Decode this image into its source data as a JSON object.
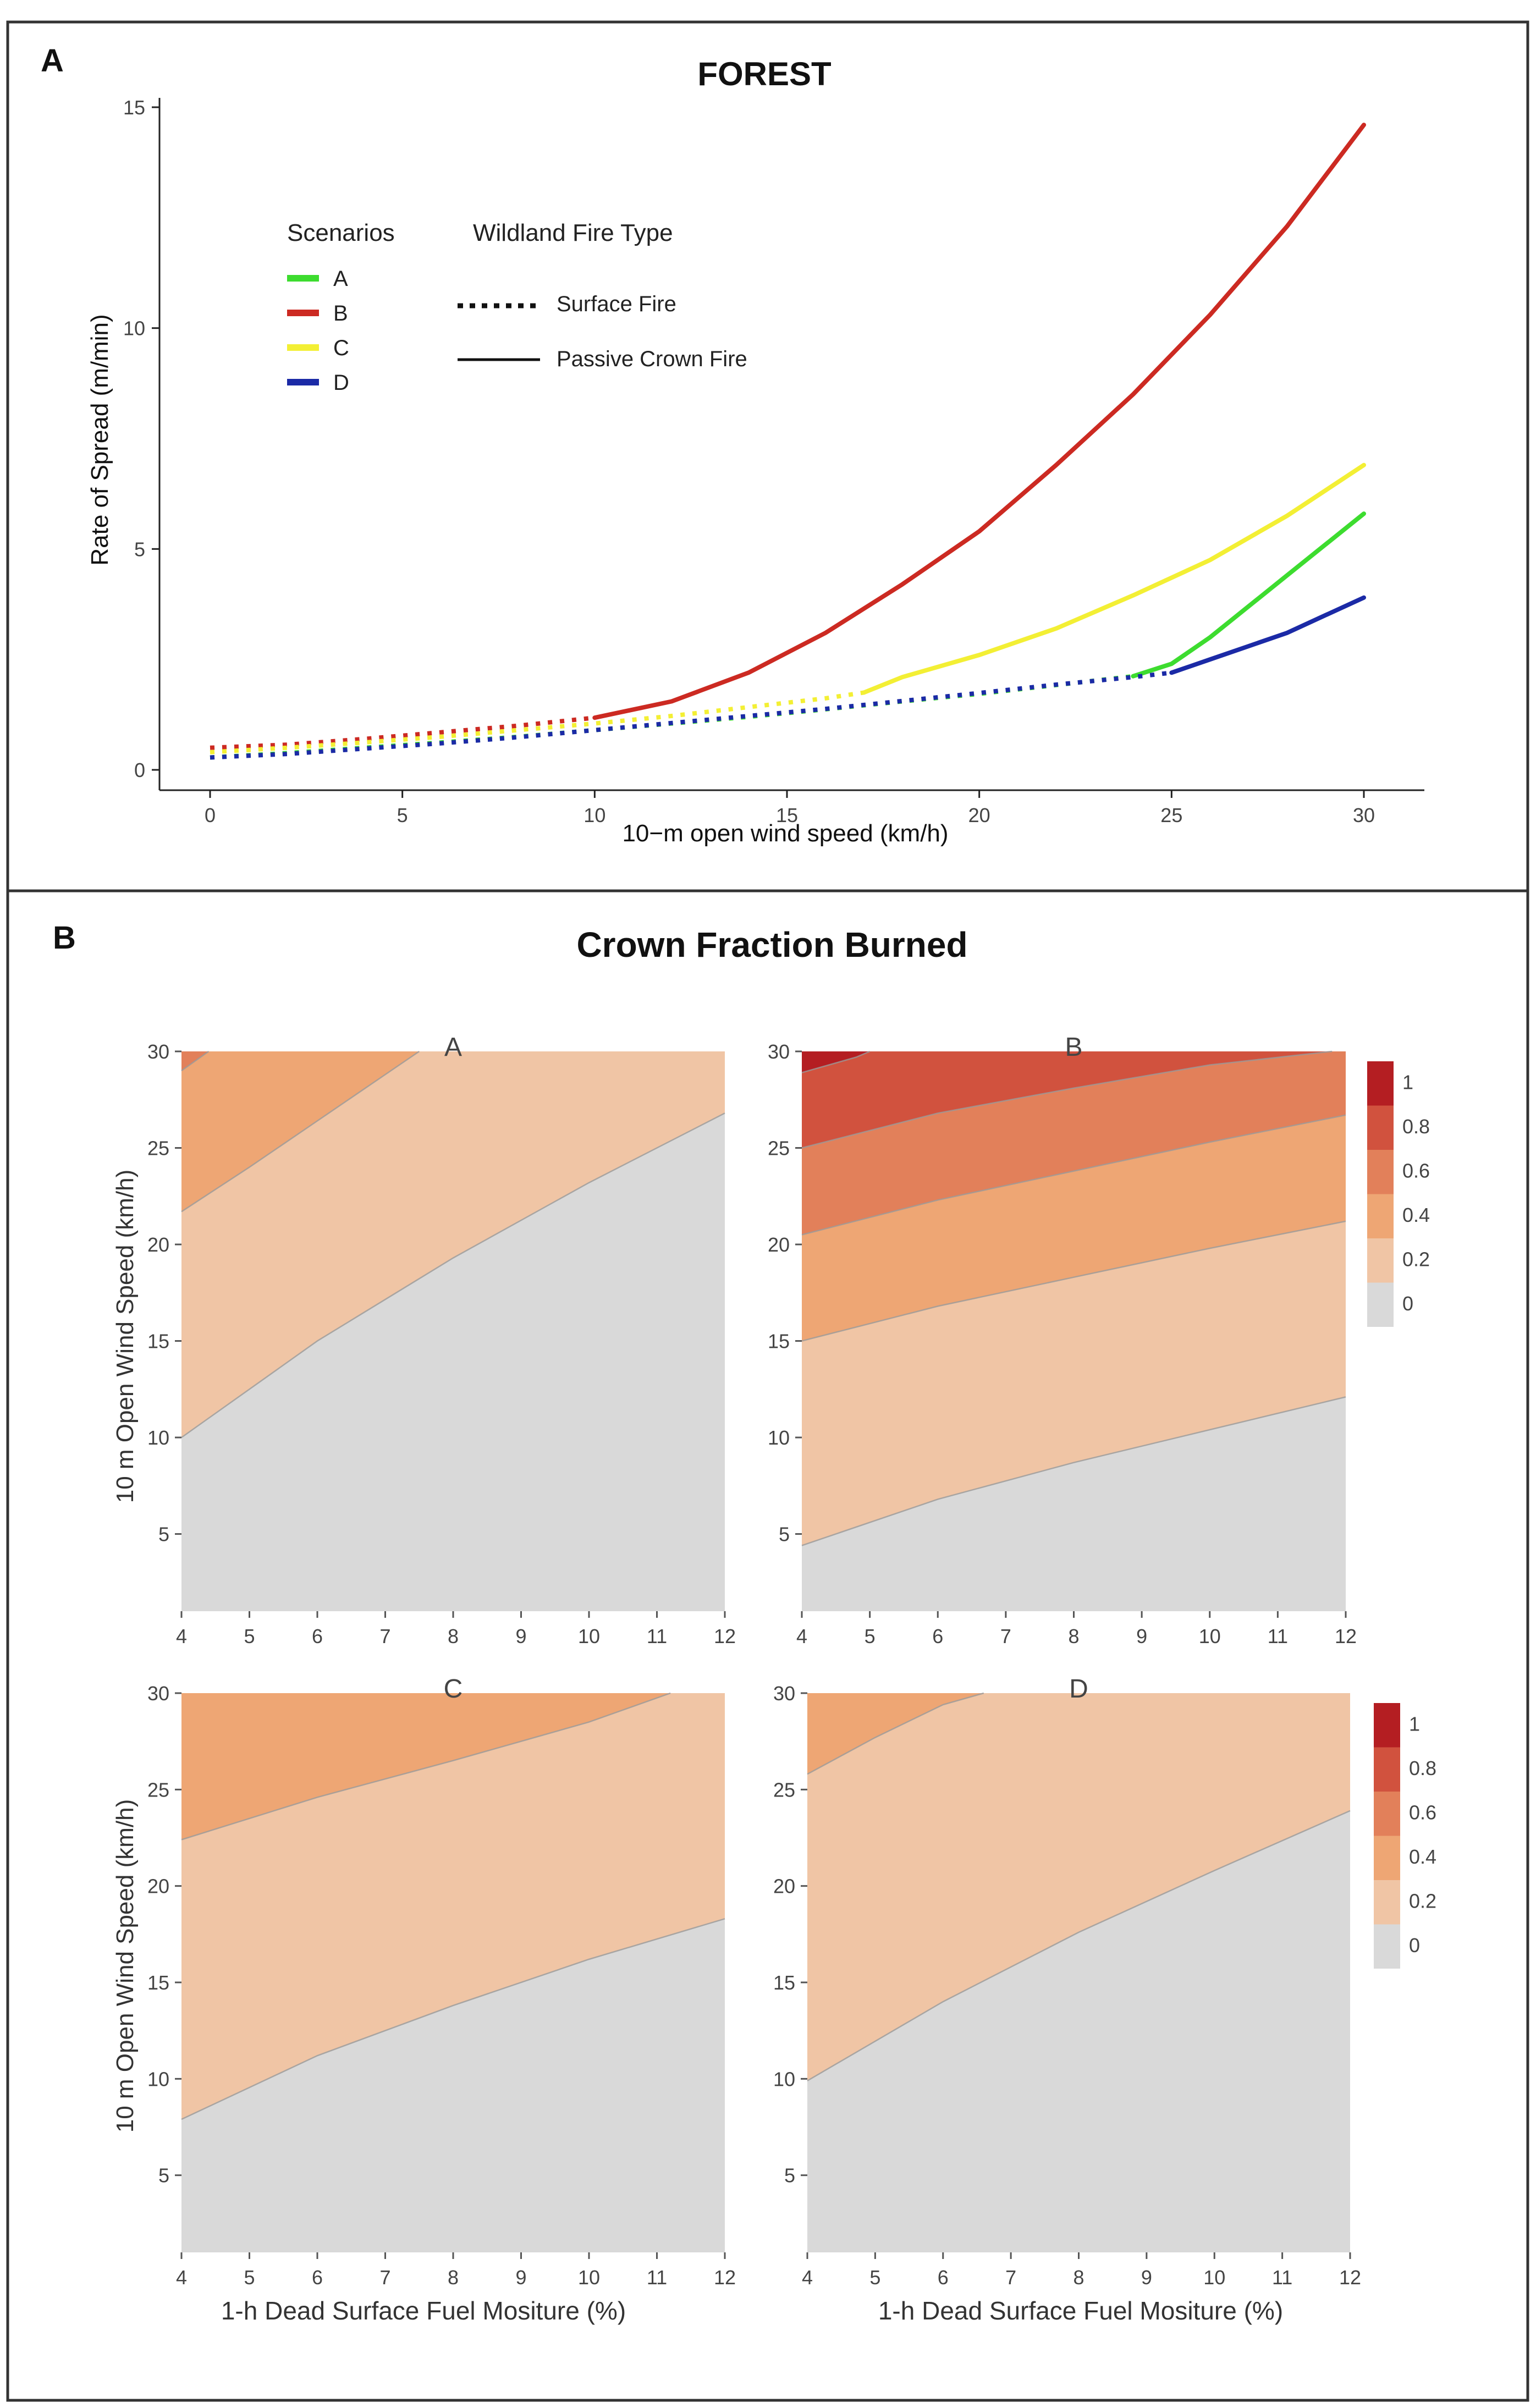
{
  "panel_a": {
    "panel_letter": "A",
    "title": "FOREST",
    "xlabel": "10−m open wind speed (km/h)",
    "ylabel": "Rate of Spread (m/min)",
    "legend_scenarios_title": "Scenarios",
    "legend_firetype_title": "Wildland Fire Type",
    "legend_firetype_items": [
      {
        "label": "Surface Fire",
        "style": "dotted"
      },
      {
        "label": "Passive Crown Fire",
        "style": "solid"
      }
    ]
  },
  "panel_b": {
    "panel_letter": "B",
    "title": "Crown Fraction Burned",
    "ylabel": "10 m Open Wind Speed (km/h)",
    "xlabel": "1-h Dead Surface Fuel Mositure (%)"
  },
  "colors": {
    "scenario_A": "#3ddc2f",
    "scenario_B": "#cc2a22",
    "scenario_C": "#f3ef34",
    "scenario_D": "#1b2aa6",
    "band_0": "#d9d9d9",
    "band_0_2": "#f0c5a5",
    "band_0_4": "#eea674",
    "band_0_6": "#e2805a",
    "band_0_8": "#d1523e",
    "band_1": "#b41e22"
  },
  "chart_data": [
    {
      "type": "line",
      "title": "FOREST",
      "xlabel": "10−m open wind speed (km/h)",
      "ylabel": "Rate of Spread (m/min)",
      "xlim": [
        0,
        30
      ],
      "ylim": [
        0,
        15
      ],
      "xticks": [
        0,
        5,
        10,
        15,
        20,
        25,
        30
      ],
      "yticks": [
        0,
        5,
        10,
        15
      ],
      "series": [
        {
          "name": "A",
          "color": "#3ddc2f",
          "surface_x": [
            0,
            2,
            4,
            6,
            8,
            10,
            12,
            14,
            16,
            18,
            20,
            22,
            24
          ],
          "surface_y": [
            0.28,
            0.38,
            0.5,
            0.62,
            0.75,
            0.9,
            1.05,
            1.2,
            1.37,
            1.55,
            1.72,
            1.92,
            2.12
          ],
          "crown_x": [
            24,
            25,
            26,
            27,
            28,
            29,
            30
          ],
          "crown_y": [
            2.12,
            2.4,
            3.0,
            3.7,
            4.4,
            5.1,
            5.8
          ]
        },
        {
          "name": "B",
          "color": "#cc2a22",
          "surface_x": [
            0,
            2,
            4,
            6,
            8,
            10
          ],
          "surface_y": [
            0.5,
            0.57,
            0.7,
            0.85,
            1.0,
            1.18
          ],
          "crown_x": [
            10,
            12,
            14,
            16,
            18,
            20,
            22,
            24,
            26,
            28,
            30
          ],
          "crown_y": [
            1.18,
            1.55,
            2.2,
            3.1,
            4.2,
            5.4,
            6.9,
            8.5,
            10.3,
            12.3,
            14.6
          ]
        },
        {
          "name": "C",
          "color": "#f3ef34",
          "surface_x": [
            0,
            2,
            4,
            6,
            8,
            10,
            12,
            14,
            16,
            17
          ],
          "surface_y": [
            0.4,
            0.5,
            0.62,
            0.75,
            0.9,
            1.05,
            1.22,
            1.42,
            1.62,
            1.75
          ],
          "crown_x": [
            17,
            18,
            20,
            22,
            24,
            26,
            28,
            30
          ],
          "crown_y": [
            1.75,
            2.1,
            2.6,
            3.2,
            3.95,
            4.75,
            5.75,
            6.9
          ]
        },
        {
          "name": "D",
          "color": "#1b2aa6",
          "surface_x": [
            0,
            2,
            4,
            6,
            8,
            10,
            12,
            14,
            16,
            18,
            20,
            22,
            24,
            25
          ],
          "surface_y": [
            0.28,
            0.36,
            0.48,
            0.6,
            0.74,
            0.9,
            1.06,
            1.22,
            1.38,
            1.56,
            1.74,
            1.93,
            2.1,
            2.2
          ],
          "crown_x": [
            25,
            26,
            27,
            28,
            29,
            30
          ],
          "crown_y": [
            2.2,
            2.5,
            2.8,
            3.1,
            3.5,
            3.9
          ]
        }
      ]
    },
    {
      "type": "contour",
      "title": "Crown Fraction Burned",
      "xlabel": "1-h Dead Surface Fuel Mositure (%)",
      "ylabel": "10 m Open Wind Speed (km/h)",
      "levels": [
        "0",
        "0.2",
        "0.4",
        "0.6",
        "0.8",
        "1"
      ],
      "subplots": [
        {
          "label": "A",
          "xlim": [
            4,
            12
          ],
          "ylim": [
            1,
            30
          ],
          "xticks": [
            4,
            5,
            6,
            7,
            8,
            9,
            10,
            11,
            12
          ],
          "yticks": [
            5,
            10,
            15,
            20,
            25,
            30
          ],
          "boundaries": [
            {
              "level": "0.2",
              "x": [
                4,
                6,
                8,
                10,
                12
              ],
              "y": [
                10.0,
                15.0,
                19.3,
                23.2,
                26.8
              ]
            },
            {
              "level": "0.4",
              "x": [
                4,
                5,
                6,
                7,
                7.5
              ],
              "y": [
                21.7,
                24.0,
                26.4,
                28.8,
                30.0
              ]
            },
            {
              "level": "0.6",
              "x": [
                4.0,
                4.4
              ],
              "y": [
                29.0,
                30.0
              ]
            }
          ]
        },
        {
          "label": "B",
          "xlim": [
            4,
            12
          ],
          "ylim": [
            1,
            30
          ],
          "xticks": [
            4,
            5,
            6,
            7,
            8,
            9,
            10,
            11,
            12
          ],
          "yticks": [
            5,
            10,
            15,
            20,
            25,
            30
          ],
          "boundaries": [
            {
              "level": "0.2",
              "x": [
                4,
                6,
                8,
                10,
                12
              ],
              "y": [
                4.4,
                6.8,
                8.7,
                10.4,
                12.1
              ]
            },
            {
              "level": "0.4",
              "x": [
                4,
                6,
                8,
                10,
                12
              ],
              "y": [
                15.0,
                16.8,
                18.3,
                19.8,
                21.2
              ]
            },
            {
              "level": "0.6",
              "x": [
                4,
                6,
                8,
                10,
                12
              ],
              "y": [
                20.5,
                22.3,
                23.8,
                25.3,
                26.7
              ]
            },
            {
              "level": "0.8",
              "x": [
                4,
                6,
                8,
                10,
                11.8
              ],
              "y": [
                25.0,
                26.8,
                28.1,
                29.3,
                30.0
              ]
            },
            {
              "level": "1",
              "x": [
                4.0,
                4.8,
                5.0
              ],
              "y": [
                28.9,
                29.7,
                30.0
              ]
            }
          ]
        },
        {
          "label": "C",
          "xlim": [
            4,
            12
          ],
          "ylim": [
            1,
            30
          ],
          "xticks": [
            4,
            5,
            6,
            7,
            8,
            9,
            10,
            11,
            12
          ],
          "yticks": [
            5,
            10,
            15,
            20,
            25,
            30
          ],
          "boundaries": [
            {
              "level": "0.2",
              "x": [
                4,
                6,
                8,
                10,
                12
              ],
              "y": [
                7.9,
                11.2,
                13.8,
                16.2,
                18.3
              ]
            },
            {
              "level": "0.4",
              "x": [
                4,
                6,
                8,
                10,
                11.2
              ],
              "y": [
                22.4,
                24.6,
                26.5,
                28.5,
                30.0
              ]
            }
          ]
        },
        {
          "label": "D",
          "xlim": [
            4,
            12
          ],
          "ylim": [
            1,
            30
          ],
          "xticks": [
            4,
            5,
            6,
            7,
            8,
            9,
            10,
            11,
            12
          ],
          "yticks": [
            5,
            10,
            15,
            20,
            25,
            30
          ],
          "boundaries": [
            {
              "level": "0.2",
              "x": [
                4,
                6,
                8,
                10,
                12
              ],
              "y": [
                9.9,
                14.0,
                17.6,
                20.8,
                23.9
              ]
            },
            {
              "level": "0.4",
              "x": [
                4,
                5,
                6,
                6.6
              ],
              "y": [
                25.8,
                27.7,
                29.4,
                30.0
              ]
            }
          ]
        }
      ]
    }
  ]
}
